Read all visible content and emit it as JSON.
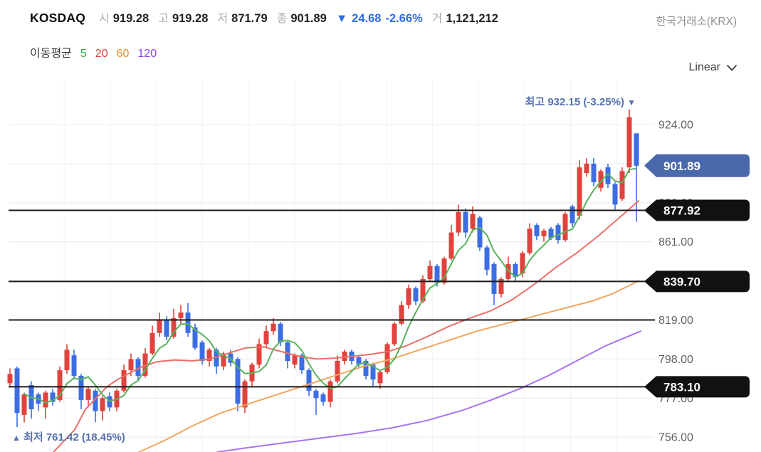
{
  "header": {
    "symbol": "KOSDAQ",
    "fields": [
      {
        "label": "시",
        "value": "919.28"
      },
      {
        "label": "고",
        "value": "919.28"
      },
      {
        "label": "저",
        "value": "871.79"
      },
      {
        "label": "종",
        "value": "901.89"
      }
    ],
    "change_arrow": "▼",
    "change_value": "24.68",
    "change_pct": "-2.66%",
    "volume_label": "거",
    "volume_value": "1,121,212",
    "exchange": "한국거래소(KRX)",
    "change_color": "#2f6de4"
  },
  "legend": {
    "label": "이동평균",
    "items": [
      {
        "period": "5",
        "color": "#2ead46"
      },
      {
        "period": "20",
        "color": "#e2403a"
      },
      {
        "period": "60",
        "color": "#e78b2e"
      },
      {
        "period": "120",
        "color": "#8b41f5"
      }
    ]
  },
  "scale_selector": {
    "label": "Linear"
  },
  "chart_data": {
    "type": "candlestick",
    "title": "KOSDAQ daily chart",
    "ylim": [
      745,
      940
    ],
    "y_ticks": [
      924,
      903,
      882,
      861,
      840,
      819,
      798,
      777,
      756
    ],
    "visible_tick_labels": [
      "924.00",
      "861.00",
      "819.00",
      "798.00",
      "777.00",
      "756.00"
    ],
    "current_price": 901.89,
    "current_price_badge_color": "#4a68ac",
    "drawn_line_badge_color": "#111111",
    "horizontal_lines": [
      {
        "value": 877.92,
        "badge": true
      },
      {
        "value": 839.7,
        "badge": true
      },
      {
        "value": 819.0,
        "badge": false
      },
      {
        "value": 783.1,
        "badge": true
      }
    ],
    "high_marker": {
      "label": "최고",
      "value": "932.15",
      "pct": "(-3.25%)",
      "arrow": "▼",
      "price": 932.15,
      "color": "#5670ab"
    },
    "low_marker": {
      "label": "최저",
      "value": "761.42",
      "pct": "(18.45%)",
      "arrow": "▲",
      "price": 761.42,
      "color": "#5670ab"
    },
    "candle_up_color": "#e0433d",
    "candle_down_color": "#3d6de2",
    "candles_ohlc": [
      [
        785,
        793,
        783,
        790
      ],
      [
        793,
        794,
        761.42,
        769
      ],
      [
        768,
        780,
        764,
        779
      ],
      [
        784,
        786,
        766,
        771
      ],
      [
        779,
        780,
        770,
        774
      ],
      [
        772,
        781,
        766,
        780
      ],
      [
        780,
        782,
        773,
        775
      ],
      [
        776,
        794,
        775,
        792
      ],
      [
        792,
        806,
        790,
        803
      ],
      [
        800,
        803,
        787,
        789
      ],
      [
        789,
        790,
        771,
        776
      ],
      [
        776,
        783,
        773,
        782
      ],
      [
        781,
        782,
        764,
        770
      ],
      [
        770,
        778,
        765,
        777
      ],
      [
        778,
        780,
        770,
        772
      ],
      [
        772,
        782,
        770,
        781
      ],
      [
        781,
        795,
        780,
        792
      ],
      [
        792,
        801,
        789,
        798
      ],
      [
        798,
        799,
        786,
        789
      ],
      [
        789,
        804,
        788,
        801
      ],
      [
        801,
        816,
        800,
        812
      ],
      [
        812,
        823,
        810,
        819
      ],
      [
        819,
        821,
        808,
        810
      ],
      [
        810,
        825,
        809,
        820
      ],
      [
        820,
        827,
        817,
        823
      ],
      [
        823,
        828,
        810,
        812
      ],
      [
        815,
        817,
        803,
        804
      ],
      [
        807,
        808,
        795,
        797
      ],
      [
        797,
        804,
        794,
        803
      ],
      [
        803,
        804,
        790,
        794
      ],
      [
        794,
        802,
        792,
        801
      ],
      [
        801,
        803,
        794,
        796
      ],
      [
        798,
        799,
        770,
        774
      ],
      [
        772,
        787,
        769,
        786
      ],
      [
        786,
        796,
        783,
        795
      ],
      [
        795,
        809,
        793,
        806
      ],
      [
        806,
        816,
        804,
        813
      ],
      [
        813,
        820,
        811,
        817
      ],
      [
        817,
        818,
        805,
        807
      ],
      [
        807,
        808,
        793,
        797
      ],
      [
        795,
        801,
        793,
        800
      ],
      [
        800,
        801,
        790,
        792
      ],
      [
        792,
        793,
        778,
        781
      ],
      [
        781,
        782,
        768,
        777
      ],
      [
        779,
        780,
        773,
        775
      ],
      [
        775,
        787,
        772,
        786
      ],
      [
        786,
        800,
        785,
        797
      ],
      [
        797,
        803,
        795,
        802
      ],
      [
        802,
        803,
        795,
        797
      ],
      [
        799,
        800,
        793,
        795
      ],
      [
        797,
        798,
        787,
        789
      ],
      [
        795,
        796,
        783,
        787
      ],
      [
        785,
        792,
        782,
        791
      ],
      [
        791,
        807,
        790,
        806
      ],
      [
        806,
        818,
        805,
        817
      ],
      [
        817,
        829,
        816,
        827
      ],
      [
        827,
        838,
        825,
        836
      ],
      [
        836,
        837,
        827,
        829
      ],
      [
        829,
        843,
        828,
        841
      ],
      [
        841,
        851,
        840,
        848
      ],
      [
        848,
        849,
        837,
        839
      ],
      [
        839,
        853,
        838,
        852
      ],
      [
        852,
        870,
        851,
        866
      ],
      [
        866,
        881,
        864,
        877
      ],
      [
        877,
        879,
        863,
        866
      ],
      [
        868,
        880,
        866,
        876
      ],
      [
        874,
        875,
        856,
        858
      ],
      [
        858,
        859,
        843,
        846
      ],
      [
        849,
        850,
        827,
        833
      ],
      [
        833,
        842,
        831,
        841
      ],
      [
        841,
        853,
        840,
        849
      ],
      [
        849,
        850,
        840,
        842
      ],
      [
        844,
        856,
        842,
        855
      ],
      [
        855,
        871,
        854,
        868
      ],
      [
        870,
        871,
        862,
        864
      ],
      [
        864,
        868,
        861,
        867
      ],
      [
        868,
        869,
        862,
        863
      ],
      [
        870,
        871,
        860,
        862
      ],
      [
        862,
        877,
        861,
        876
      ],
      [
        880,
        881,
        869,
        871
      ],
      [
        875,
        905,
        873,
        901
      ],
      [
        898,
        906,
        896,
        903
      ],
      [
        903,
        906,
        891,
        893
      ],
      [
        890,
        900,
        888,
        899
      ],
      [
        901,
        903,
        890,
        892
      ],
      [
        892,
        893,
        878,
        881
      ],
      [
        884,
        901,
        883,
        899
      ],
      [
        901,
        932.15,
        898,
        928
      ],
      [
        919.28,
        919.28,
        871.79,
        901.89
      ]
    ],
    "moving_averages": {
      "ma5": {
        "color": "#57b35b",
        "computed_from_closes": true
      },
      "ma20": {
        "color": "#ec6f68",
        "points": [
          [
            75,
            748
          ],
          [
            90,
            754
          ],
          [
            105,
            760
          ],
          [
            120,
            771
          ],
          [
            135,
            777
          ],
          [
            150,
            783
          ],
          [
            165,
            787
          ],
          [
            180,
            790
          ],
          [
            200,
            794
          ],
          [
            220,
            796.5
          ],
          [
            245,
            797.5
          ],
          [
            270,
            797
          ],
          [
            295,
            798
          ],
          [
            320,
            801
          ],
          [
            345,
            804
          ],
          [
            370,
            804.5
          ],
          [
            395,
            802
          ],
          [
            420,
            799.5
          ],
          [
            445,
            798
          ],
          [
            470,
            798.5
          ],
          [
            495,
            799.5
          ],
          [
            520,
            800.5
          ],
          [
            545,
            802
          ],
          [
            570,
            805
          ],
          [
            600,
            810
          ],
          [
            630,
            815.5
          ],
          [
            660,
            820
          ],
          [
            690,
            824
          ],
          [
            720,
            830
          ],
          [
            750,
            838
          ],
          [
            780,
            847
          ],
          [
            810,
            855
          ],
          [
            840,
            864
          ],
          [
            870,
            874
          ],
          [
            897,
            883
          ]
        ]
      },
      "ma60": {
        "color": "#f2a55e",
        "points": [
          [
            195,
            748
          ],
          [
            230,
            754
          ],
          [
            270,
            762
          ],
          [
            310,
            769
          ],
          [
            350,
            774
          ],
          [
            390,
            779
          ],
          [
            430,
            784
          ],
          [
            470,
            789
          ],
          [
            510,
            794
          ],
          [
            550,
            798
          ],
          [
            590,
            803
          ],
          [
            630,
            808
          ],
          [
            670,
            813
          ],
          [
            710,
            817
          ],
          [
            750,
            821
          ],
          [
            790,
            825
          ],
          [
            830,
            829
          ],
          [
            860,
            833
          ],
          [
            897,
            840
          ]
        ]
      },
      "ma120": {
        "color": "#a873f2",
        "points": [
          [
            305,
            748
          ],
          [
            350,
            750.5
          ],
          [
            400,
            753
          ],
          [
            450,
            755.5
          ],
          [
            500,
            758
          ],
          [
            550,
            761
          ],
          [
            600,
            765
          ],
          [
            650,
            770.5
          ],
          [
            690,
            776
          ],
          [
            730,
            782
          ],
          [
            770,
            789
          ],
          [
            810,
            797
          ],
          [
            850,
            805
          ],
          [
            900,
            813
          ]
        ]
      }
    },
    "grid": {
      "h_color": "#edeff4",
      "v_color": "#f3f4f8",
      "drawn_line_color": "#1b1b1b"
    },
    "axis_label_color": "#5e6166"
  }
}
